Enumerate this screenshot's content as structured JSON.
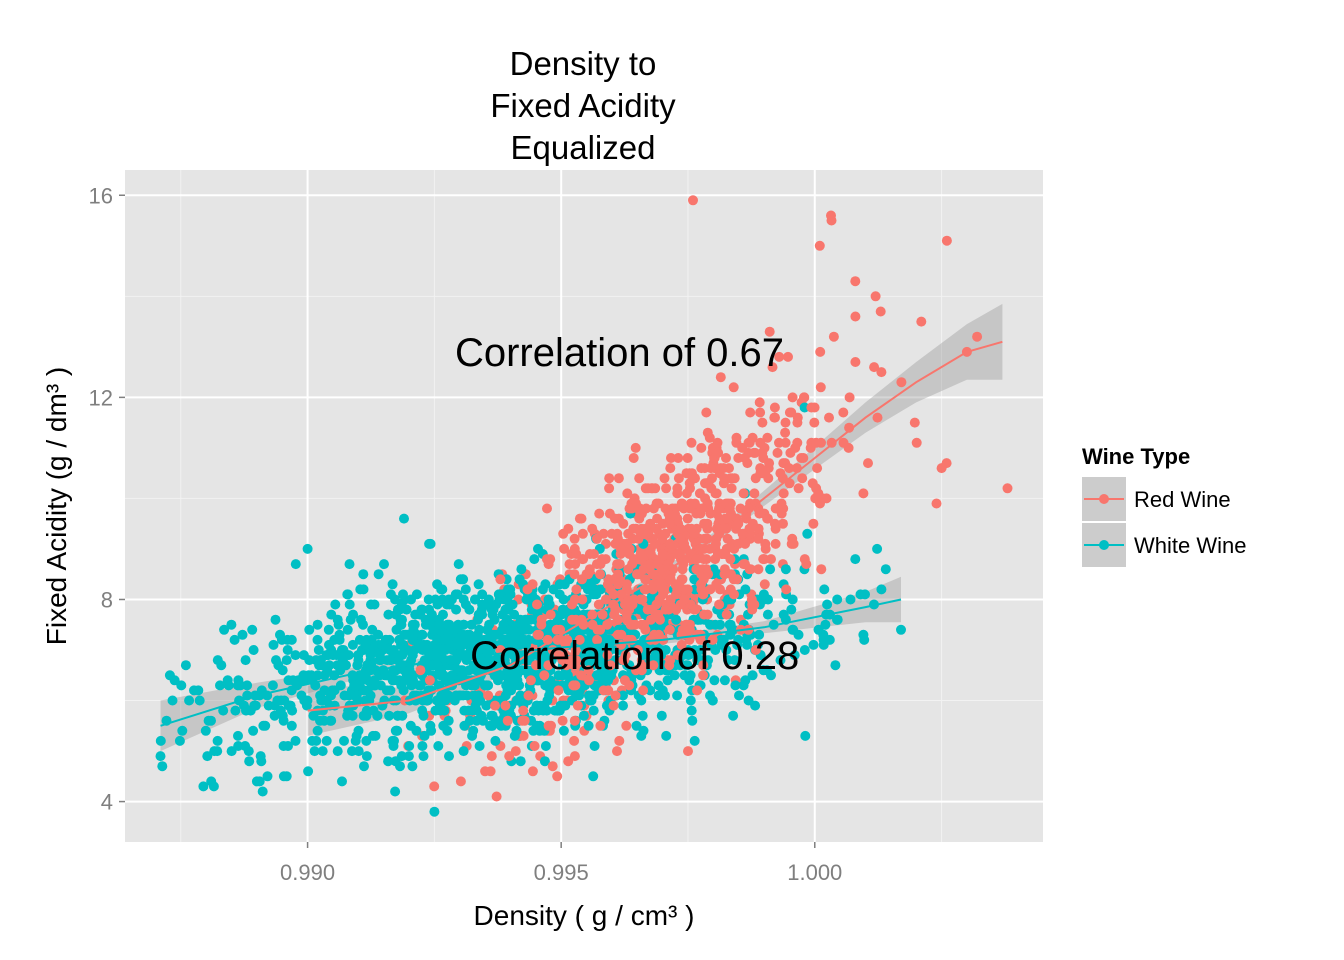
{
  "chart_data": {
    "type": "scatter",
    "title_lines": [
      "Density to",
      "Fixed Acidity",
      "Equalized"
    ],
    "xlabel": "Density ( g / cm³ )",
    "ylabel": "Fixed Acidity (g / dm³ )",
    "xlim": [
      0.9864,
      1.0045
    ],
    "ylim": [
      3.2,
      16.5
    ],
    "x_ticks": [
      0.99,
      0.995,
      1.0
    ],
    "x_tick_labels": [
      "0.990",
      "0.995",
      "1.000"
    ],
    "y_ticks": [
      4,
      8,
      12,
      16
    ],
    "y_tick_labels": [
      "4",
      "8",
      "12",
      "16"
    ],
    "grid": true,
    "legend": {
      "title": "Wine Type",
      "placement": "right",
      "entries": [
        "Red Wine",
        "White Wine"
      ]
    },
    "colors": {
      "red": "#F8766D",
      "white": "#00BFC4",
      "panel": "#E5E5E5",
      "ribbon": "#999999"
    },
    "annotations": [
      {
        "text": "Correlation of 0.67",
        "x": 0.99615,
        "y": 12.9
      },
      {
        "text": "Correlation of 0.28",
        "x": 0.99645,
        "y": 6.9
      }
    ],
    "series": [
      {
        "name": "Red Wine",
        "color": "#F8766D",
        "n_points": 1000,
        "cloud": {
          "x_mean": 0.9967,
          "x_sd": 0.0019,
          "x_range": [
            0.99,
            1.0037
          ],
          "slope": 780,
          "noise_sd": 1.1
        },
        "outliers": [
          [
            0.9976,
            15.9
          ],
          [
            1.00032,
            15.6
          ],
          [
            1.00033,
            15.5
          ],
          [
            1.0001,
            15.0
          ],
          [
            1.0008,
            14.3
          ],
          [
            1.0012,
            14.0
          ],
          [
            1.0013,
            13.7
          ],
          [
            1.0021,
            13.5
          ],
          [
            1.0032,
            13.2
          ],
          [
            1.003,
            12.9
          ],
          [
            1.0038,
            10.2
          ],
          [
            1.0026,
            10.7
          ],
          [
            1.0025,
            10.6
          ],
          [
            1.0024,
            9.9
          ],
          [
            0.9975,
            5.0
          ],
          [
            0.9935,
            4.6
          ],
          [
            0.9942,
            5.3
          ],
          [
            0.9955,
            5.7
          ]
        ],
        "smooth": {
          "x": [
            0.99,
            0.992,
            0.994,
            0.995,
            0.996,
            0.997,
            0.998,
            0.999,
            1.0,
            1.001,
            1.002,
            1.003,
            1.0037
          ],
          "y": [
            5.8,
            6.0,
            6.7,
            7.3,
            7.9,
            8.5,
            9.2,
            10.0,
            10.8,
            11.6,
            12.3,
            12.9,
            13.1
          ],
          "se": [
            0.5,
            0.25,
            0.15,
            0.12,
            0.1,
            0.1,
            0.12,
            0.15,
            0.22,
            0.3,
            0.4,
            0.55,
            0.75
          ]
        }
      },
      {
        "name": "White Wine",
        "color": "#00BFC4",
        "n_points": 1500,
        "cloud": {
          "x_mean": 0.994,
          "x_sd": 0.0028,
          "x_range": [
            0.9871,
            1.0017
          ],
          "slope": 190,
          "noise_sd": 0.8
        },
        "outliers": [
          [
            0.9871,
            4.9
          ],
          [
            0.9881,
            4.4
          ],
          [
            0.989,
            4.4
          ],
          [
            0.9925,
            3.8
          ],
          [
            0.99,
            9.0
          ],
          [
            0.9919,
            9.6
          ],
          [
            0.9998,
            11.8
          ],
          [
            1.0017,
            7.4
          ],
          [
            1.0008,
            8.8
          ],
          [
            1.0014,
            8.6
          ]
        ],
        "smooth": {
          "x": [
            0.9871,
            0.989,
            0.991,
            0.993,
            0.995,
            0.997,
            0.999,
            1.001,
            1.0017
          ],
          "y": [
            5.5,
            6.1,
            6.55,
            6.85,
            7.05,
            7.2,
            7.45,
            7.85,
            8.0
          ],
          "se": [
            0.5,
            0.25,
            0.12,
            0.08,
            0.07,
            0.08,
            0.12,
            0.3,
            0.45
          ]
        }
      }
    ]
  }
}
